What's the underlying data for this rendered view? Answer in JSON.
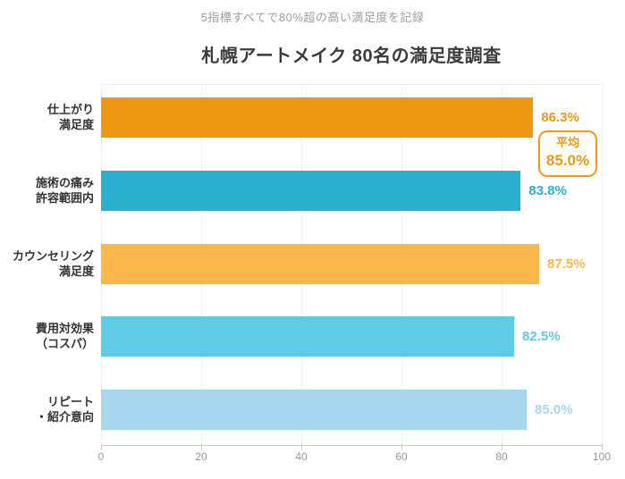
{
  "header": {
    "subtitle": "5指標すべてで80%超の高い満足度を記録",
    "title": "札幌アートメイク 80名の満足度調査"
  },
  "chart_data": {
    "type": "bar",
    "orientation": "horizontal",
    "title": "札幌アートメイク 80名の満足度調査",
    "subtitle": "5指標すべてで80%超の高い満足度を記録",
    "categories": [
      "仕上がり満足度",
      "施術の痛み許容範囲内",
      "カウンセリング満足度",
      "費用対効果（コスパ）",
      "リピート・紹介意向"
    ],
    "category_label_lines": [
      [
        "仕上がり",
        "満足度"
      ],
      [
        "施術の痛み",
        "許容範囲内"
      ],
      [
        "カウンセリング",
        "満足度"
      ],
      [
        "費用対効果",
        "（コスパ）"
      ],
      [
        "リピート",
        "・紹介意向"
      ]
    ],
    "values": [
      86.3,
      83.8,
      87.5,
      82.5,
      85.0
    ],
    "value_labels": [
      "86.3%",
      "83.8%",
      "87.5%",
      "82.5%",
      "85.0%"
    ],
    "bar_colors": [
      "#EF9712",
      "#2BB1CF",
      "#FBB74B",
      "#5FCAE4",
      "#A7D7EF"
    ],
    "xlabel": "",
    "ylabel": "",
    "xlim": [
      0,
      100
    ],
    "x_ticks": [
      0,
      20,
      40,
      60,
      80,
      100
    ],
    "grid": true,
    "legend": false,
    "annotation": {
      "label": "平均",
      "value": "85.0%",
      "accent_color": "#F09B1C"
    }
  }
}
